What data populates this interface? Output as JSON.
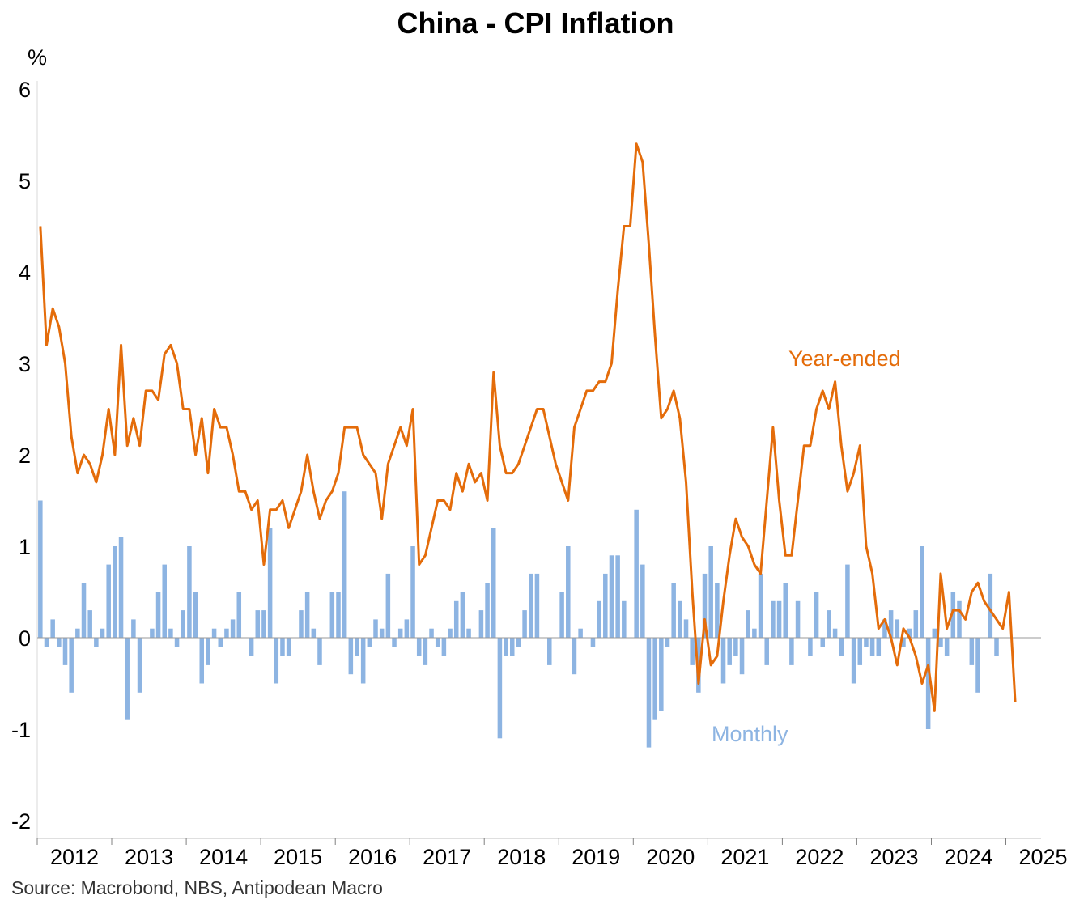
{
  "chart_data": {
    "type": "bar+line",
    "title": "China - CPI Inflation",
    "ylabel": "%",
    "source": "Source: Macrobond, NBS, Antipodean Macro",
    "ylim": [
      -2,
      6
    ],
    "yticks": [
      -2,
      -1,
      0,
      1,
      2,
      3,
      4,
      5,
      6
    ],
    "xlim": [
      "2012-01",
      "2025-02"
    ],
    "xtick_labels": [
      "2012",
      "2013",
      "2014",
      "2015",
      "2016",
      "2017",
      "2018",
      "2019",
      "2020",
      "2021",
      "2022",
      "2023",
      "2024",
      "2025"
    ],
    "x_start": "2012-01",
    "frequency": "monthly",
    "grid": false,
    "colors": {
      "year_ended": "#E46C0A",
      "monthly": "#8DB4E2",
      "axis": "#999999"
    },
    "series": [
      {
        "name": "Year-ended",
        "type": "line",
        "values": [
          4.5,
          3.2,
          3.6,
          3.4,
          3.0,
          2.2,
          1.8,
          2.0,
          1.9,
          1.7,
          2.0,
          2.5,
          2.0,
          3.2,
          2.1,
          2.4,
          2.1,
          2.7,
          2.7,
          2.6,
          3.1,
          3.2,
          3.0,
          2.5,
          2.5,
          2.0,
          2.4,
          1.8,
          2.5,
          2.3,
          2.3,
          2.0,
          1.6,
          1.6,
          1.4,
          1.5,
          0.8,
          1.4,
          1.4,
          1.5,
          1.2,
          1.4,
          1.6,
          2.0,
          1.6,
          1.3,
          1.5,
          1.6,
          1.8,
          2.3,
          2.3,
          2.3,
          2.0,
          1.9,
          1.8,
          1.3,
          1.9,
          2.1,
          2.3,
          2.1,
          2.5,
          0.8,
          0.9,
          1.2,
          1.5,
          1.5,
          1.4,
          1.8,
          1.6,
          1.9,
          1.7,
          1.8,
          1.5,
          2.9,
          2.1,
          1.8,
          1.8,
          1.9,
          2.1,
          2.3,
          2.5,
          2.5,
          2.2,
          1.9,
          1.7,
          1.5,
          2.3,
          2.5,
          2.7,
          2.7,
          2.8,
          2.8,
          3.0,
          3.8,
          4.5,
          4.5,
          5.4,
          5.2,
          4.3,
          3.3,
          2.4,
          2.5,
          2.7,
          2.4,
          1.7,
          0.5,
          -0.5,
          0.2,
          -0.3,
          -0.2,
          0.4,
          0.9,
          1.3,
          1.1,
          1.0,
          0.8,
          0.7,
          1.5,
          2.3,
          1.5,
          0.9,
          0.9,
          1.5,
          2.1,
          2.1,
          2.5,
          2.7,
          2.5,
          2.8,
          2.1,
          1.6,
          1.8,
          2.1,
          1.0,
          0.7,
          0.1,
          0.2,
          0.0,
          -0.3,
          0.1,
          0.0,
          -0.2,
          -0.5,
          -0.3,
          -0.8,
          0.7,
          0.1,
          0.3,
          0.3,
          0.2,
          0.5,
          0.6,
          0.4,
          0.3,
          0.2,
          0.1,
          0.5,
          -0.7
        ]
      },
      {
        "name": "Monthly",
        "type": "bar",
        "values": [
          1.5,
          -0.1,
          0.2,
          -0.1,
          -0.3,
          -0.6,
          0.1,
          0.6,
          0.3,
          -0.1,
          0.1,
          0.8,
          1.0,
          1.1,
          -0.9,
          0.2,
          -0.6,
          0.0,
          0.1,
          0.5,
          0.8,
          0.1,
          -0.1,
          0.3,
          1.0,
          0.5,
          -0.5,
          -0.3,
          0.1,
          -0.1,
          0.1,
          0.2,
          0.5,
          0.0,
          -0.2,
          0.3,
          0.3,
          1.2,
          -0.5,
          -0.2,
          -0.2,
          0.0,
          0.3,
          0.5,
          0.1,
          -0.3,
          0.0,
          0.5,
          0.5,
          1.6,
          -0.4,
          -0.2,
          -0.5,
          -0.1,
          0.2,
          0.1,
          0.7,
          -0.1,
          0.1,
          0.2,
          1.0,
          -0.2,
          -0.3,
          0.1,
          -0.1,
          -0.2,
          0.1,
          0.4,
          0.5,
          0.1,
          0.0,
          0.3,
          0.6,
          1.2,
          -1.1,
          -0.2,
          -0.2,
          -0.1,
          0.3,
          0.7,
          0.7,
          0.0,
          -0.3,
          0.0,
          0.5,
          1.0,
          -0.4,
          0.1,
          0.0,
          -0.1,
          0.4,
          0.7,
          0.9,
          0.9,
          0.4,
          0.0,
          1.4,
          0.8,
          -1.2,
          -0.9,
          -0.8,
          -0.1,
          0.6,
          0.4,
          0.2,
          -0.3,
          -0.6,
          0.7,
          1.0,
          0.6,
          -0.5,
          -0.3,
          -0.2,
          -0.4,
          0.3,
          0.1,
          0.7,
          -0.3,
          0.4,
          0.4,
          0.6,
          -0.3,
          0.4,
          0.0,
          -0.2,
          0.5,
          -0.1,
          0.3,
          0.1,
          -0.2,
          0.8,
          -0.5,
          -0.3,
          -0.1,
          -0.2,
          -0.2,
          0.2,
          0.3,
          0.2,
          -0.1,
          0.1,
          0.3,
          1.0,
          -1.0,
          0.1,
          -0.1,
          -0.2,
          0.5,
          0.4,
          0.0,
          -0.3,
          -0.6,
          0.0,
          0.7,
          -0.2
        ]
      }
    ]
  }
}
